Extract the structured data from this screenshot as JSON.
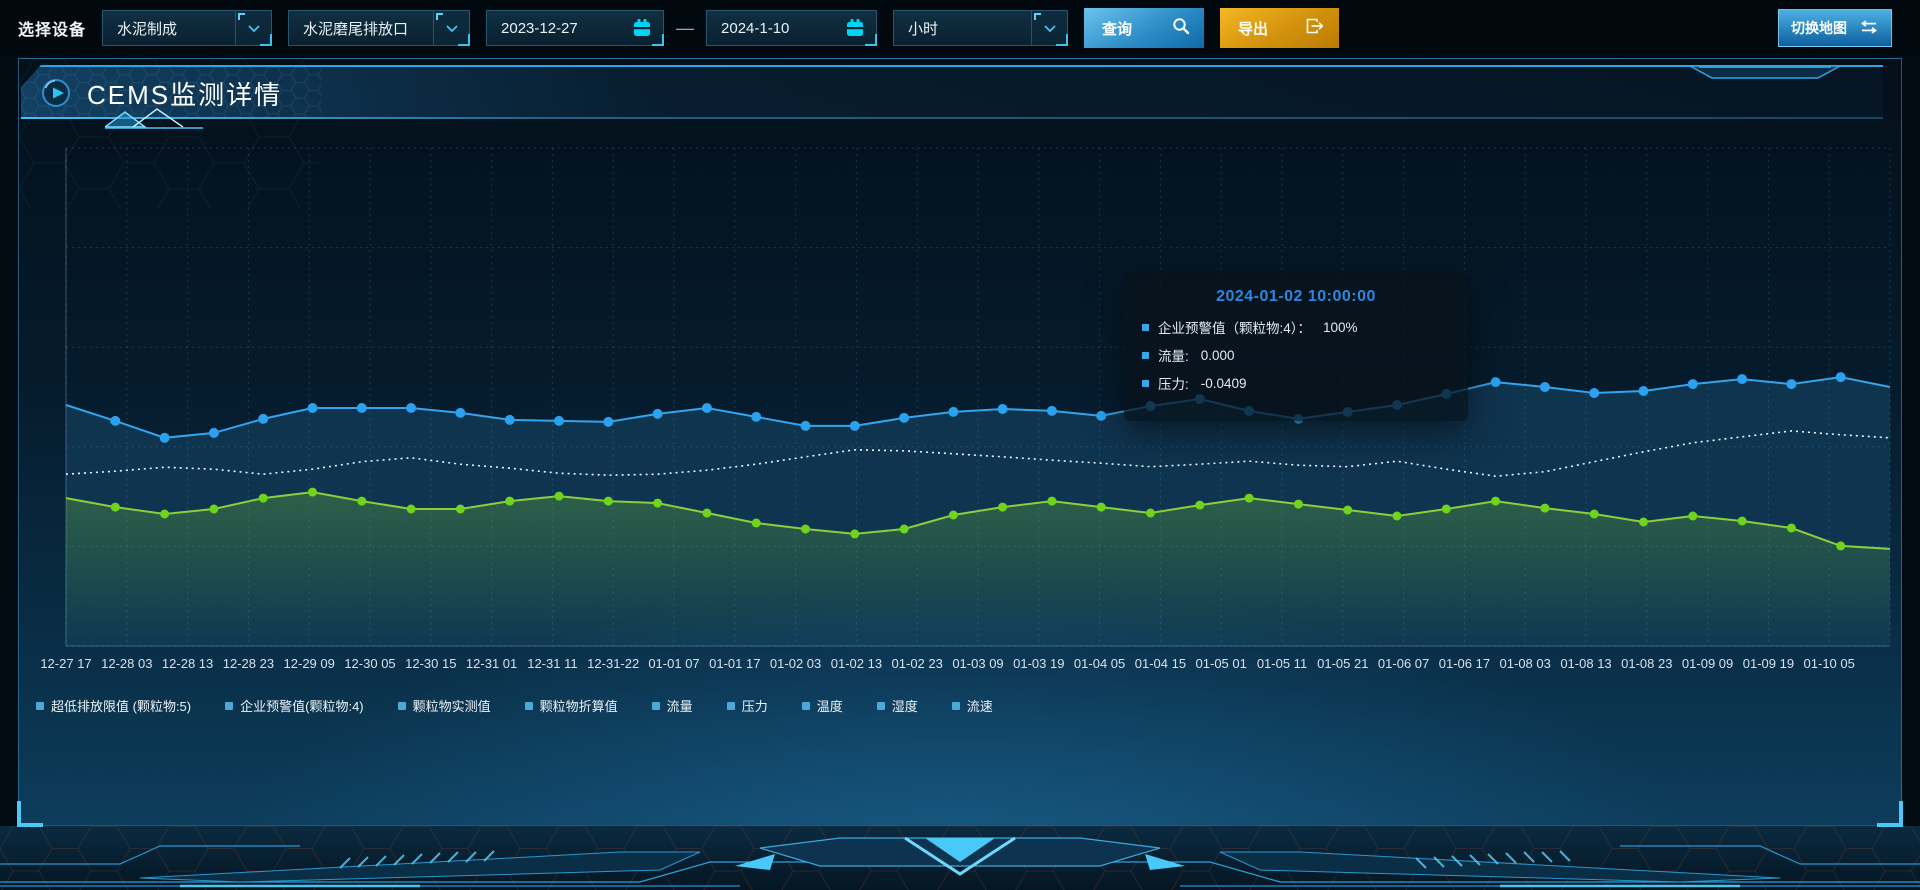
{
  "toolbar": {
    "device_label": "选择设备",
    "select_device_type": "水泥制成",
    "select_outlet": "水泥磨尾排放口",
    "date_start": "2023-12-27",
    "date_separator": "—",
    "date_end": "2024-1-10",
    "select_interval": "小时",
    "query_label": "查询",
    "export_label": "导出",
    "switch_map_label": "切换地图"
  },
  "panel": {
    "title": "CEMS监测详情"
  },
  "tooltip": {
    "title": "2024-01-02 10:00:00",
    "items": [
      {
        "label": "企业预警值（颗粒物:4）：",
        "value": "100%"
      },
      {
        "label": "流量:",
        "value": "0.000"
      },
      {
        "label": "压力:",
        "value": "-0.0409"
      }
    ]
  },
  "legend": [
    "超低排放限值 (颗粒物:5)",
    "企业预警值(颗粒物:4)",
    "颗粒物实测值",
    "颗粒物折算值",
    "流量",
    "压力",
    "温度",
    "湿度",
    "流速"
  ],
  "chart_data": {
    "type": "line",
    "title": "CEMS监测详情",
    "xlabel": "",
    "ylabel": "",
    "y_axis": "unlabeled (values are % of plot height, estimated from pixels)",
    "grid": {
      "h_lines": 6,
      "v_lines": 31,
      "style": "dashed"
    },
    "legend_position": "bottom-left",
    "x_labels": [
      "12-27 17",
      "12-28 03",
      "12-28 13",
      "12-28 23",
      "12-29 09",
      "12-30 05",
      "12-30 15",
      "12-31 01",
      "12-31 11",
      "12-31-22",
      "01-01 07",
      "01-01 17",
      "01-02 03",
      "01-02 13",
      "01-02 23",
      "01-03 09",
      "01-03 19",
      "01-04 05",
      "01-04 15",
      "01-05 01",
      "01-05 11",
      "01-05 21",
      "01-06 07",
      "01-06 17",
      "01-08 03",
      "01-08 13",
      "01-08 23",
      "01-09 09",
      "01-09 19",
      "01-10 05"
    ],
    "series": [
      {
        "name": "series-blue",
        "color": "#36a3ee",
        "dot_color": "#2aa2f0",
        "dot_radius": 5,
        "style": "solid",
        "width": 2,
        "markers": true,
        "area": "blue",
        "values": [
          48.4,
          45.2,
          41.8,
          42.8,
          45.6,
          47.8,
          47.8,
          47.8,
          46.8,
          45.4,
          45.2,
          45.0,
          46.6,
          47.8,
          46.0,
          44.2,
          44.2,
          45.8,
          47.0,
          47.6,
          47.2,
          46.2,
          48.2,
          49.6,
          47.2,
          45.6,
          47.0,
          48.4,
          50.6,
          53.0,
          52.0,
          50.8,
          51.2,
          52.6,
          53.6,
          52.6,
          54.0,
          52.0
        ]
      },
      {
        "name": "series-white-dotted",
        "color": "#eef6fc",
        "dot_color": "#eef6fc",
        "dot_radius": 0,
        "style": "dotted",
        "width": 1.6,
        "markers": false,
        "area": null,
        "values": [
          34.5,
          35.1,
          35.9,
          35.5,
          34.5,
          35.5,
          37.0,
          37.8,
          36.5,
          35.7,
          34.7,
          34.3,
          34.5,
          35.3,
          36.5,
          38.0,
          39.4,
          39.2,
          38.6,
          38.0,
          37.3,
          36.7,
          36.0,
          36.5,
          37.1,
          36.3,
          36.0,
          37.1,
          35.5,
          34.1,
          35.0,
          37.0,
          39.0,
          40.8,
          42.0,
          43.2,
          42.4,
          41.8
        ]
      },
      {
        "name": "series-green",
        "color": "#8ccf3c",
        "dot_color": "#6fd41c",
        "dot_radius": 4.5,
        "style": "solid",
        "width": 2,
        "markers": true,
        "area": "green",
        "values": [
          29.7,
          27.9,
          26.5,
          27.5,
          29.7,
          30.9,
          29.1,
          27.5,
          27.5,
          29.1,
          30.1,
          29.1,
          28.7,
          26.7,
          24.7,
          23.5,
          22.5,
          23.5,
          26.3,
          27.9,
          29.1,
          27.9,
          26.7,
          28.3,
          29.7,
          28.5,
          27.3,
          26.1,
          27.5,
          29.1,
          27.7,
          26.5,
          24.9,
          26.1,
          25.1,
          23.7,
          20.1,
          19.5
        ]
      }
    ]
  },
  "colors": {
    "accent_cyan": "#2fc3f2",
    "query_button_gradient": [
      "#6cc3ee",
      "#0f69a6"
    ],
    "export_button_gradient": [
      "#f4b824",
      "#bb7b04"
    ],
    "switch_map_gradient": [
      "#4cb0e2",
      "#0e5f9f"
    ],
    "panel_border": "#3a96cd",
    "series_blue": "#36a3ee",
    "series_white": "#eef6fc",
    "series_green": "#8ccf3c",
    "legend_marker": "#4aa9d6",
    "tooltip_title": "#2e86e0",
    "axis_label": "#d5e2ec"
  }
}
